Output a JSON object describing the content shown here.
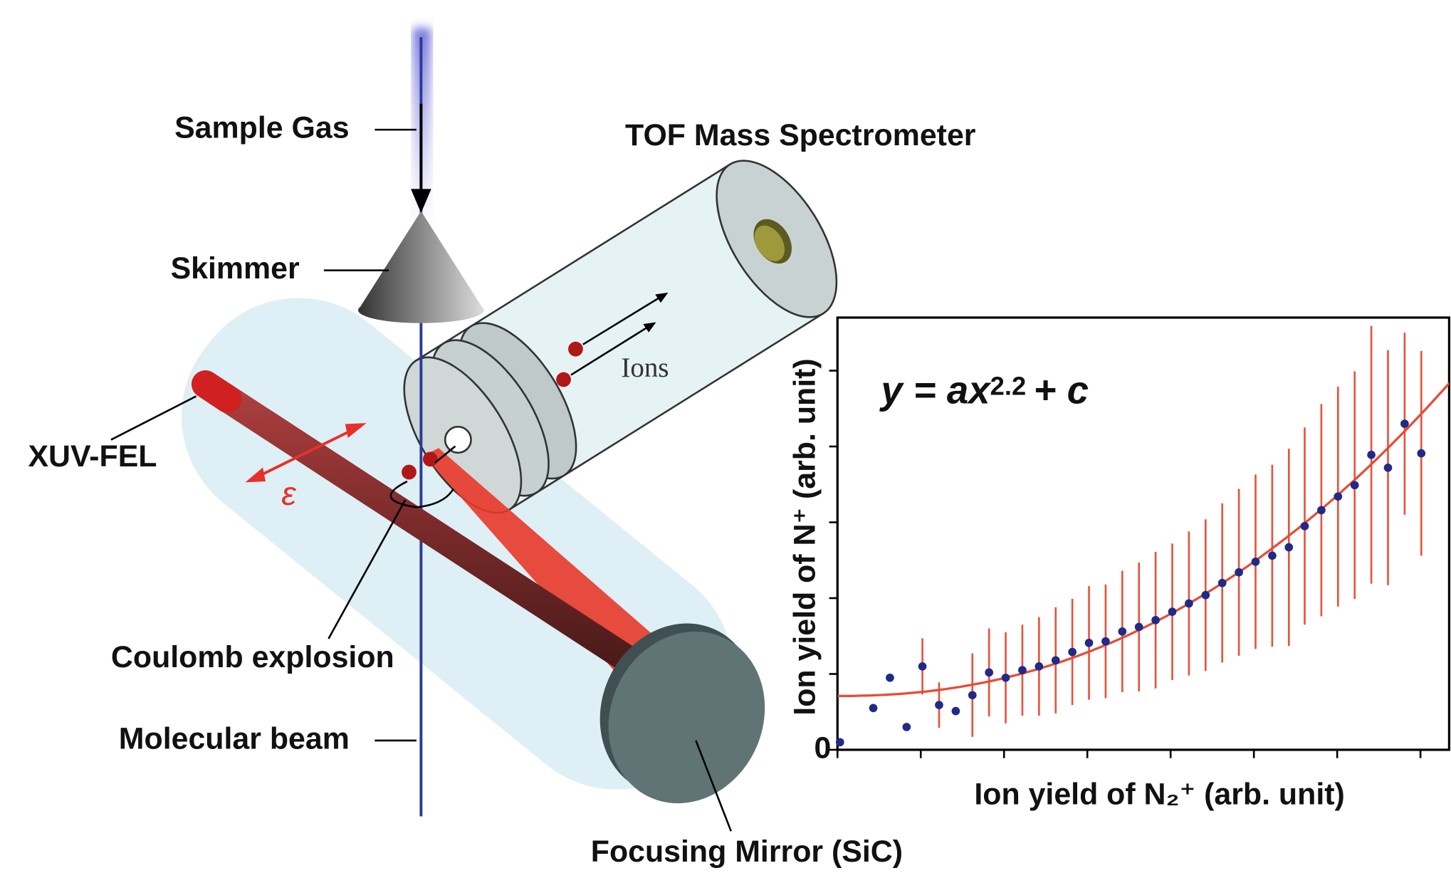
{
  "labels": {
    "sample_gas": "Sample Gas",
    "tof": "TOF Mass Spectrometer",
    "skimmer": "Skimmer",
    "xuv_fel": "XUV-FEL",
    "polarization": "ε",
    "ions": "Ions",
    "coulomb": "Coulomb explosion",
    "molecular_beam": "Molecular beam",
    "mirror": "Focusing Mirror (SiC)"
  },
  "chart": {
    "type": "scatter",
    "x_label": "Ion yield of N₂⁺ (arb. unit)",
    "y_label": "Ion yield of N⁺ (arb. unit)",
    "origin_label": "0",
    "formula_lhs": "y = ax",
    "formula_rhs": "+ c",
    "fit": {
      "a": 0.0513,
      "exponent": 2.2,
      "c": 0.71,
      "color": "#e84a35"
    },
    "point_color": "#1f2b86",
    "error_color": "#e8503a",
    "xlim": [
      0,
      7.37
    ],
    "ylim": [
      0,
      5.7
    ],
    "xticks": [
      0,
      1,
      2,
      3,
      4,
      5,
      6,
      7
    ],
    "yticks": [
      0,
      1,
      2,
      3,
      4,
      5
    ],
    "x": [
      0.03,
      0.43,
      0.63,
      0.83,
      1.02,
      1.22,
      1.42,
      1.62,
      1.82,
      2.02,
      2.22,
      2.42,
      2.62,
      2.82,
      3.02,
      3.22,
      3.42,
      3.62,
      3.82,
      4.02,
      4.22,
      4.42,
      4.62,
      4.82,
      5.02,
      5.22,
      5.42,
      5.61,
      5.81,
      6.01,
      6.21,
      6.41,
      6.61,
      6.81,
      7.01
    ],
    "values": [
      0.1,
      0.55,
      0.95,
      0.3,
      1.1,
      0.59,
      0.51,
      0.72,
      1.02,
      0.95,
      1.05,
      1.1,
      1.18,
      1.29,
      1.41,
      1.43,
      1.56,
      1.62,
      1.71,
      1.82,
      1.93,
      2.04,
      2.2,
      2.34,
      2.48,
      2.56,
      2.67,
      2.95,
      3.16,
      3.34,
      3.49,
      3.89,
      3.72,
      4.3,
      3.91
    ],
    "errors": [
      null,
      null,
      null,
      null,
      0.37,
      0.3,
      null,
      0.55,
      0.58,
      0.6,
      0.6,
      0.65,
      0.7,
      0.7,
      0.75,
      0.75,
      0.8,
      0.85,
      0.9,
      0.9,
      0.95,
      1.0,
      1.05,
      1.1,
      1.15,
      1.2,
      1.3,
      1.3,
      1.4,
      1.45,
      1.5,
      1.7,
      1.55,
      1.2,
      1.35
    ]
  }
}
